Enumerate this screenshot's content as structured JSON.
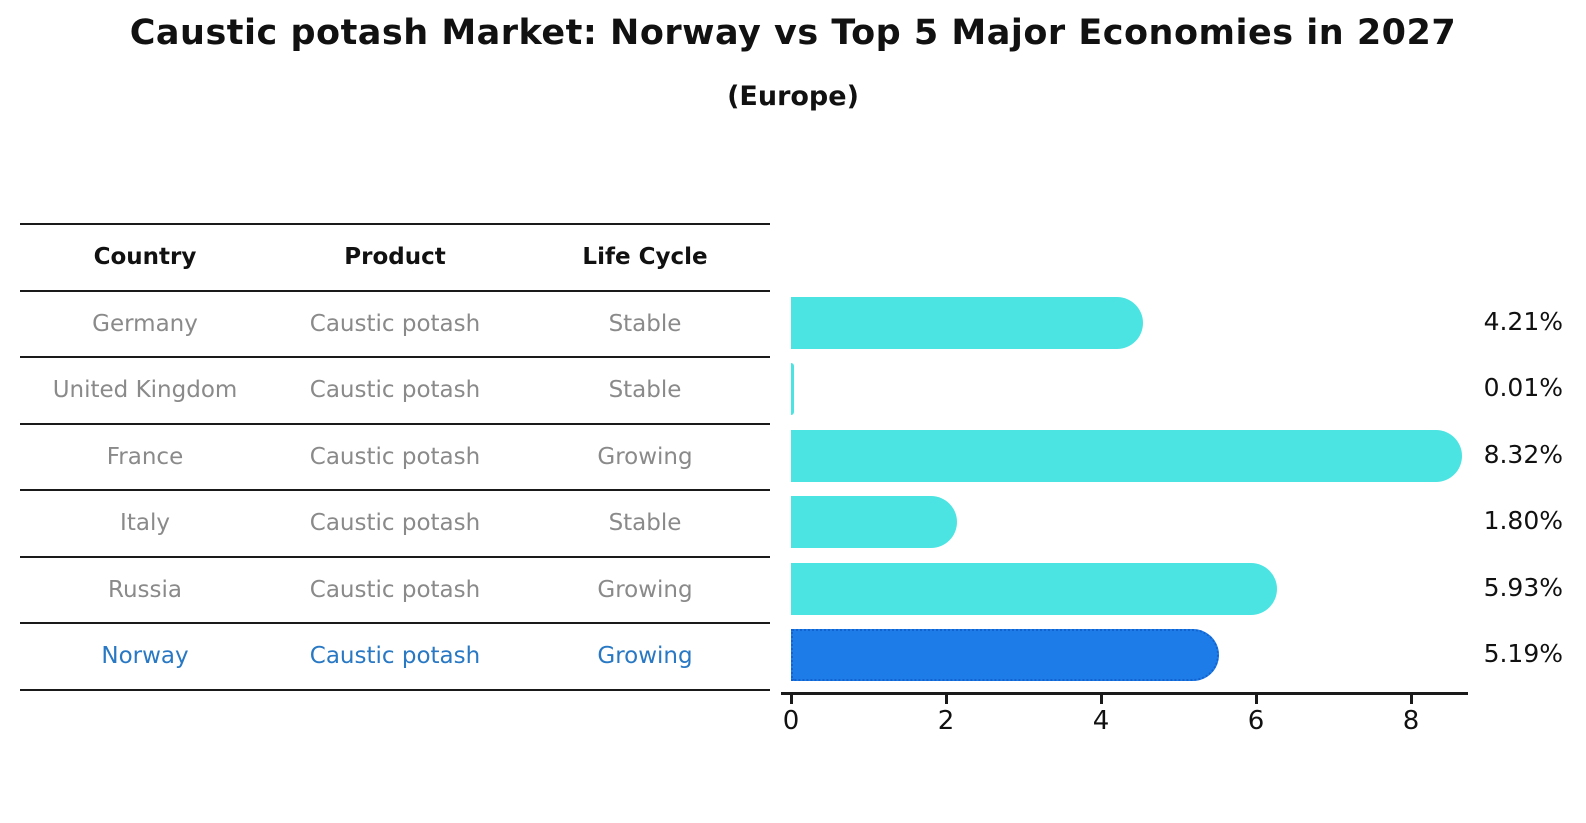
{
  "title": "Caustic potash Market: Norway vs Top 5 Major Economies in 2027",
  "subtitle": "(Europe)",
  "table": {
    "headers": [
      "Country",
      "Product",
      "Life Cycle"
    ],
    "rows": [
      {
        "country": "Germany",
        "product": "Caustic potash",
        "life_cycle": "Stable",
        "highlight": false
      },
      {
        "country": "United Kingdom",
        "product": "Caustic potash",
        "life_cycle": "Stable",
        "highlight": false
      },
      {
        "country": "France",
        "product": "Caustic potash",
        "life_cycle": "Growing",
        "highlight": false
      },
      {
        "country": "Italy",
        "product": "Caustic potash",
        "life_cycle": "Stable",
        "highlight": false
      },
      {
        "country": "Russia",
        "product": "Caustic potash",
        "life_cycle": "Growing",
        "highlight": false
      },
      {
        "country": "Norway",
        "product": "Caustic potash",
        "life_cycle": "Growing",
        "highlight": true
      }
    ]
  },
  "chart_data": {
    "type": "bar",
    "orientation": "horizontal",
    "title": "Caustic potash Market: Norway vs Top 5 Major Economies in 2027",
    "subtitle": "(Europe)",
    "categories": [
      "Germany",
      "United Kingdom",
      "France",
      "Italy",
      "Russia",
      "Norway"
    ],
    "values": [
      4.21,
      0.01,
      8.32,
      1.8,
      5.93,
      5.19
    ],
    "value_labels": [
      "4.21%",
      "0.01%",
      "8.32%",
      "1.80%",
      "5.93%",
      "5.19%"
    ],
    "x_ticks": [
      0,
      2,
      4,
      6,
      8
    ],
    "xlim": [
      0,
      8.7
    ],
    "grid": false,
    "legend": "none",
    "bar_color": "#4be4e2",
    "highlight_bar_color": "#1d7ce8",
    "highlight_border_color": "#1263cf",
    "highlight_index": 5
  },
  "colors": {
    "row_text": "#8a8a8a",
    "header_text": "#111111",
    "highlight_text": "#2878c4",
    "axis": "#1a1a1a"
  }
}
